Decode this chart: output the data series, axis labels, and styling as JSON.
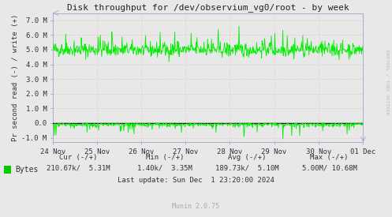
{
  "title": "Disk throughput for /dev/observium_vg0/root - by week",
  "ylabel": "Pr second read (-) / write (+)",
  "xlabel_dates": [
    "24 Nov",
    "25 Nov",
    "26 Nov",
    "27 Nov",
    "28 Nov",
    "29 Nov",
    "30 Nov",
    "01 Dec"
  ],
  "ylim": [
    -1300000,
    7500000
  ],
  "yticks": [
    -1000000,
    0,
    1000000,
    2000000,
    3000000,
    4000000,
    5000000,
    6000000,
    7000000
  ],
  "ytick_labels": [
    "-1.0 M",
    "0.0",
    "1.0 M",
    "2.0 M",
    "3.0 M",
    "4.0 M",
    "5.0 M",
    "6.0 M",
    "7.0 M"
  ],
  "line_color": "#00ee00",
  "background_color": "#e8e8e8",
  "plot_bg_color": "#e8e8e8",
  "grid_color_minor": "#e8b0b0",
  "title_color": "#222222",
  "axis_color": "#aaaacc",
  "rrdtool_color": "#bbbbcc",
  "legend_label": "Bytes",
  "legend_color": "#00cc00",
  "cur_neg": "210.67k",
  "cur_pos": "5.31M",
  "min_neg": "1.40k",
  "min_pos": "3.35M",
  "avg_neg": "189.73k",
  "avg_pos": "5.10M",
  "max_neg": "5.00M",
  "max_pos": "10.68M",
  "last_update": "Last update: Sun Dec  1 23:20:00 2024",
  "munin_version": "Munin 2.0.75",
  "rrdtool_label": "RRDTOOL / TOBI OETIKER",
  "num_points": 700,
  "write_base": 5000000,
  "write_noise": 250000,
  "write_spike_prob": 0.05,
  "write_spike_max": 1200000,
  "read_base": -80000,
  "read_noise": 100000,
  "read_dip_prob": 0.04,
  "read_dip_max": -800000
}
